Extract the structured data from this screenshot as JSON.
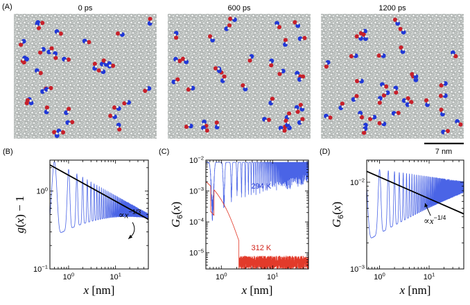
{
  "colors": {
    "surface": "#c5c9c7",
    "surface_dark": "#8f9593",
    "blue": "#2038d8",
    "red": "#c8202a",
    "curve_blue": "#4a64e6",
    "curve_red": "#e23a2a",
    "black": "#000000"
  },
  "top": {
    "panel_label": "(A)",
    "snapshots": [
      {
        "time": "0 ps"
      },
      {
        "time": "600 ps"
      },
      {
        "time": "1200 ps"
      }
    ],
    "scale_bar": "7 nm"
  },
  "chart_data": [
    {
      "type": "line",
      "panel_label": "(B)",
      "xscale": "log",
      "yscale": "log",
      "xlim": [
        0.4,
        50
      ],
      "ylim": [
        0.1,
        2.5
      ],
      "xlabel": "x [nm]",
      "ylabel": "g(x) − 1",
      "xticks": [
        {
          "v": 1,
          "label": "10^0"
        },
        {
          "v": 10,
          "label": "10^1"
        }
      ],
      "yticks": [
        {
          "v": 0.1,
          "label": "10^-1"
        },
        {
          "v": 1,
          "label": "10^0"
        }
      ],
      "series": [
        {
          "name": "g(x)-1",
          "color": "#4a64e6",
          "kind": "oscillating",
          "peak_amplitude": 1.9,
          "peak_exponent": -0.3333,
          "trough_floor": 0.1,
          "period_nm": 0.5
        },
        {
          "name": "power law",
          "color": "#000000",
          "kind": "power",
          "amplitude": 1.6,
          "exponent": -0.3333,
          "x_range": [
            0.4,
            50
          ]
        }
      ],
      "annotation": {
        "text": "∝ x^(-1/3)",
        "prefix": "∝",
        "var": "x",
        "exponent": "−1/3",
        "at_x": 20,
        "at_y": 0.45
      }
    },
    {
      "type": "line",
      "panel_label": "(C)",
      "xscale": "log",
      "yscale": "log",
      "xlim": [
        0.5,
        50
      ],
      "ylim": [
        3e-06,
        0.01
      ],
      "xlabel": "x [nm]",
      "ylabel": "G6(x)",
      "xticks": [
        {
          "v": 1,
          "label": "10^0"
        },
        {
          "v": 10,
          "label": "10^1"
        }
      ],
      "yticks": [
        {
          "v": 1e-05,
          "label": "10^-5"
        },
        {
          "v": 0.0001,
          "label": "10^-4"
        },
        {
          "v": 0.001,
          "label": "10^-3"
        },
        {
          "v": 0.01,
          "label": "10^-2"
        }
      ],
      "series": [
        {
          "name": "294 K",
          "color": "#4a64e6",
          "kind": "near-unity",
          "baseline": 0.0085,
          "dip_floor": 5e-05,
          "period_nm": 0.45
        },
        {
          "name": "312 K",
          "color": "#e23a2a",
          "kind": "decaying-noise",
          "start": 0.002,
          "decay_to": 6e-06,
          "decay_length_nm": 0.8,
          "noise_range": [
            3e-06,
            8e-06
          ]
        }
      ],
      "annotations": [
        {
          "text": "294 K",
          "color": "#2a3fd6",
          "at_x": 6,
          "at_y": 0.0012
        },
        {
          "text": "312 K",
          "color": "#d02018",
          "at_x": 6,
          "at_y": 1.2e-05
        }
      ]
    },
    {
      "type": "line",
      "panel_label": "(D)",
      "xscale": "log",
      "yscale": "log",
      "xlim": [
        0.55,
        50
      ],
      "ylim": [
        0.001,
        0.018
      ],
      "xlabel": "x [nm]",
      "ylabel": "G6(x)",
      "xticks": [
        {
          "v": 1,
          "label": "10^0"
        },
        {
          "v": 10,
          "label": "10^1"
        }
      ],
      "yticks": [
        {
          "v": 0.001,
          "label": "10^-3"
        },
        {
          "v": 0.01,
          "label": "10^-2"
        }
      ],
      "series": [
        {
          "name": "G6(x)",
          "color": "#4a64e6",
          "kind": "oscillating",
          "peak_amplitude": 0.014,
          "peak_exponent": -0.08,
          "trough_floor": 0.001,
          "period_nm": 0.5
        },
        {
          "name": "power law",
          "color": "#000000",
          "kind": "power",
          "amplitude": 0.0115,
          "exponent": -0.25,
          "x_range": [
            0.55,
            50
          ]
        }
      ],
      "annotation": {
        "text": "∝ x^(-1/4)",
        "prefix": "∝",
        "var": "x",
        "exponent": "−1/4",
        "at_x": 13,
        "at_y": 0.0033
      }
    }
  ]
}
